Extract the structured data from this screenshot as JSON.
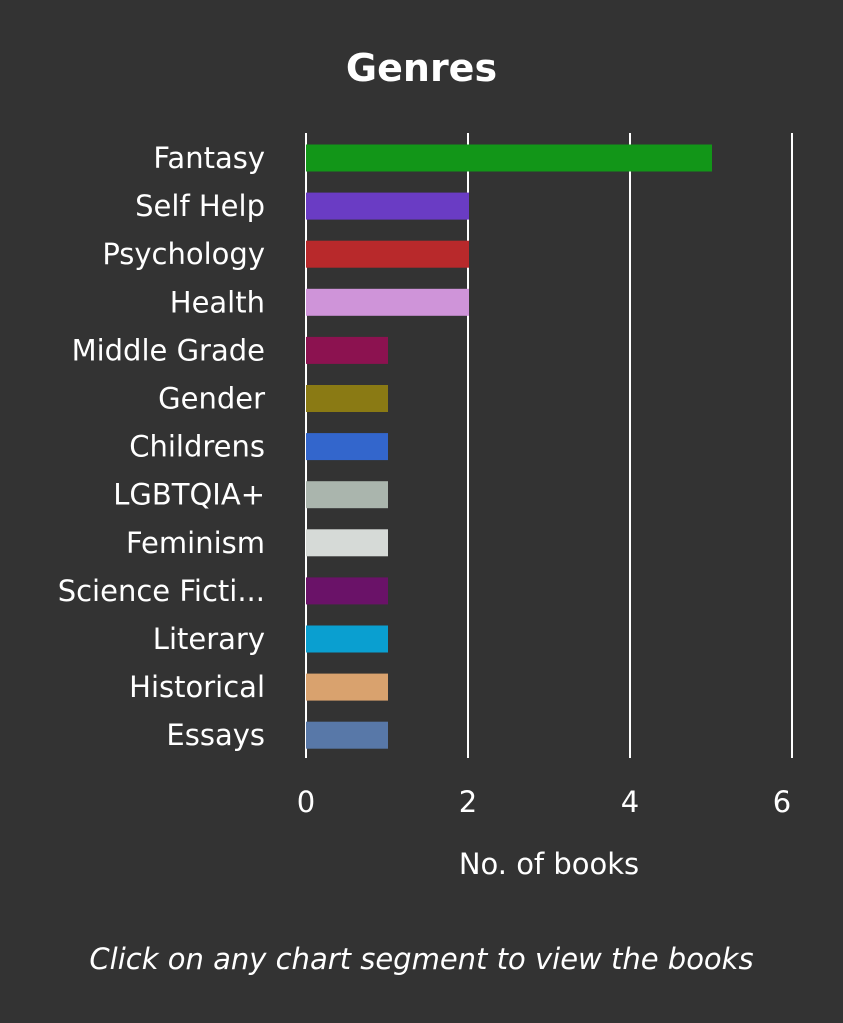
{
  "chart_data": {
    "type": "bar",
    "orientation": "horizontal",
    "title": "Genres",
    "xlabel": "No. of books",
    "ylabel": "",
    "xlim": [
      0,
      6
    ],
    "xticks": [
      "0",
      "2",
      "4",
      "6"
    ],
    "grid": true,
    "categories": [
      "Fantasy",
      "Self Help",
      "Psychology",
      "Health",
      "Middle Grade",
      "Gender",
      "Childrens",
      "LGBTQIA+",
      "Feminism",
      "Science Ficti...",
      "Literary",
      "Historical",
      "Essays"
    ],
    "values": [
      5,
      2,
      2,
      2,
      1,
      1,
      1,
      1,
      1,
      1,
      1,
      1,
      1
    ],
    "colors": [
      "#129618",
      "#6a3cc4",
      "#b8292b",
      "#cf94d9",
      "#8c1250",
      "#8a7a14",
      "#3366cc",
      "#aab5ad",
      "#d6dad7",
      "#6a1268",
      "#0a9fd0",
      "#d9a26e",
      "#5878a8"
    ]
  },
  "hint": "Click on any chart segment to view the books",
  "colors": {
    "background": "#333333",
    "text": "#ffffff",
    "gridline": "#ffffff"
  }
}
